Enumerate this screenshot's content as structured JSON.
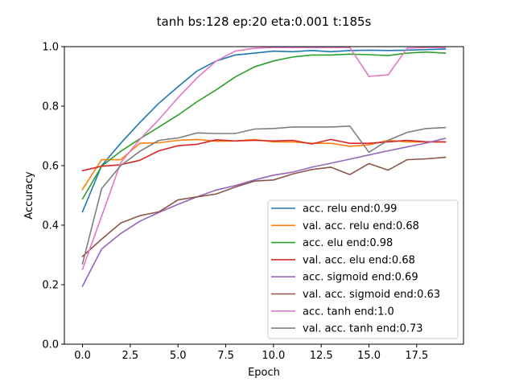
{
  "chart_data": {
    "type": "line",
    "title": "tanh bs:128 ep:20 eta:0.001 t:185s",
    "xlabel": "Epoch",
    "ylabel": "Accuracy",
    "xlim": [
      -0.95,
      19.95
    ],
    "ylim": [
      0.0,
      1.0
    ],
    "xticks": [
      0.0,
      2.5,
      5.0,
      7.5,
      10.0,
      12.5,
      15.0,
      17.5
    ],
    "xtick_labels": [
      "0.0",
      "2.5",
      "5.0",
      "7.5",
      "10.0",
      "12.5",
      "15.0",
      "17.5"
    ],
    "yticks": [
      0.0,
      0.2,
      0.4,
      0.6,
      0.8,
      1.0
    ],
    "ytick_labels": [
      "0.0",
      "0.2",
      "0.4",
      "0.6",
      "0.8",
      "1.0"
    ],
    "grid": false,
    "legend_position": "lower-right",
    "x": [
      0,
      1,
      2,
      3,
      4,
      5,
      6,
      7,
      8,
      9,
      10,
      11,
      12,
      13,
      14,
      15,
      16,
      17,
      18,
      19
    ],
    "series": [
      {
        "name": "acc. relu  end:0.99",
        "color": "#1f77b4",
        "values": [
          0.445,
          0.6,
          0.675,
          0.745,
          0.81,
          0.865,
          0.918,
          0.952,
          0.972,
          0.978,
          0.985,
          0.983,
          0.987,
          0.983,
          0.987,
          0.988,
          0.987,
          0.988,
          0.99,
          0.992
        ]
      },
      {
        "name": "val. acc. relu  end:0.68",
        "color": "#ff7f0e",
        "values": [
          0.52,
          0.62,
          0.62,
          0.675,
          0.677,
          0.685,
          0.688,
          0.682,
          0.683,
          0.688,
          0.68,
          0.68,
          0.675,
          0.675,
          0.665,
          0.67,
          0.685,
          0.68,
          0.68,
          0.68
        ]
      },
      {
        "name": "acc. elu  end:0.98",
        "color": "#2ca02c",
        "values": [
          0.488,
          0.598,
          0.648,
          0.69,
          0.73,
          0.77,
          0.815,
          0.855,
          0.898,
          0.932,
          0.952,
          0.965,
          0.972,
          0.972,
          0.975,
          0.973,
          0.97,
          0.978,
          0.982,
          0.978
        ]
      },
      {
        "name": "val. acc. elu  end:0.68",
        "color": "#d62728",
        "values": [
          0.583,
          0.598,
          0.603,
          0.618,
          0.65,
          0.667,
          0.672,
          0.687,
          0.683,
          0.685,
          0.683,
          0.685,
          0.673,
          0.688,
          0.675,
          0.675,
          0.68,
          0.685,
          0.68,
          0.68
        ]
      },
      {
        "name": "acc. sigmoid  end:0.69",
        "color": "#9467bd",
        "values": [
          0.195,
          0.32,
          0.372,
          0.413,
          0.443,
          0.47,
          0.495,
          0.518,
          0.533,
          0.552,
          0.568,
          0.578,
          0.595,
          0.608,
          0.622,
          0.636,
          0.65,
          0.663,
          0.676,
          0.692
        ]
      },
      {
        "name": "val. acc. sigmoid  end:0.63",
        "color": "#8c564b",
        "values": [
          0.295,
          0.353,
          0.407,
          0.432,
          0.445,
          0.485,
          0.495,
          0.505,
          0.528,
          0.548,
          0.552,
          0.572,
          0.587,
          0.595,
          0.57,
          0.607,
          0.585,
          0.62,
          0.623,
          0.628
        ]
      },
      {
        "name": "acc. tanh  end:1.0",
        "color": "#e377c2",
        "values": [
          0.252,
          0.43,
          0.61,
          0.688,
          0.755,
          0.828,
          0.895,
          0.952,
          0.985,
          0.995,
          0.997,
          0.997,
          0.997,
          0.997,
          0.997,
          0.9,
          0.905,
          0.995,
          0.997,
          0.997
        ]
      },
      {
        "name": "val. acc. tanh  end:0.73",
        "color": "#7f7f7f",
        "values": [
          0.27,
          0.523,
          0.6,
          0.648,
          0.685,
          0.693,
          0.71,
          0.708,
          0.708,
          0.723,
          0.725,
          0.73,
          0.73,
          0.73,
          0.733,
          0.645,
          0.685,
          0.712,
          0.725,
          0.728
        ]
      }
    ]
  }
}
